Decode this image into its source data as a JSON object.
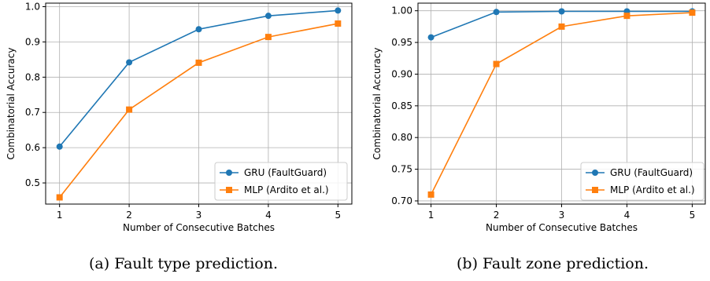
{
  "captions": [
    "(a) Fault type prediction.",
    "(b) Fault zone prediction."
  ],
  "colors": {
    "gru": "#1f77b4",
    "mlp": "#ff7f0e",
    "grid": "#b0b0b0",
    "legend_border": "#cccccc"
  },
  "chart_data": [
    {
      "type": "line",
      "xlabel": "Number of Consecutive Batches",
      "ylabel": "Combinatorial Accuracy",
      "x": [
        1,
        2,
        3,
        4,
        5
      ],
      "xlim": [
        0.8,
        5.2
      ],
      "ylim": [
        0.44,
        1.01
      ],
      "yticks": [
        0.5,
        0.6,
        0.7,
        0.8,
        0.9,
        1.0
      ],
      "ytick_labels": [
        "0.5",
        "0.6",
        "0.7",
        "0.8",
        "0.9",
        "1.0"
      ],
      "xtick_labels": [
        "1",
        "2",
        "3",
        "4",
        "5"
      ],
      "grid": true,
      "legend_position": "bottom-right",
      "series": [
        {
          "name": "GRU (FaultGuard)",
          "marker": "circle",
          "values": [
            0.603,
            0.842,
            0.936,
            0.974,
            0.989
          ]
        },
        {
          "name": "MLP (Ardito et al.)",
          "marker": "square",
          "values": [
            0.459,
            0.708,
            0.841,
            0.914,
            0.952
          ]
        }
      ]
    },
    {
      "type": "line",
      "xlabel": "Number of Consecutive Batches",
      "ylabel": "Combinatorial Accuracy",
      "x": [
        1,
        2,
        3,
        4,
        5
      ],
      "xlim": [
        0.8,
        5.2
      ],
      "ylim": [
        0.695,
        1.012
      ],
      "yticks": [
        0.7,
        0.75,
        0.8,
        0.85,
        0.9,
        0.95,
        1.0
      ],
      "ytick_labels": [
        "0.70",
        "0.75",
        "0.80",
        "0.85",
        "0.90",
        "0.95",
        "1.00"
      ],
      "xtick_labels": [
        "1",
        "2",
        "3",
        "4",
        "5"
      ],
      "grid": true,
      "legend_position": "bottom-right",
      "series": [
        {
          "name": "GRU (FaultGuard)",
          "marker": "circle",
          "values": [
            0.958,
            0.998,
            0.999,
            0.999,
            0.999
          ]
        },
        {
          "name": "MLP (Ardito et al.)",
          "marker": "square",
          "values": [
            0.71,
            0.916,
            0.975,
            0.992,
            0.997
          ]
        }
      ]
    }
  ]
}
